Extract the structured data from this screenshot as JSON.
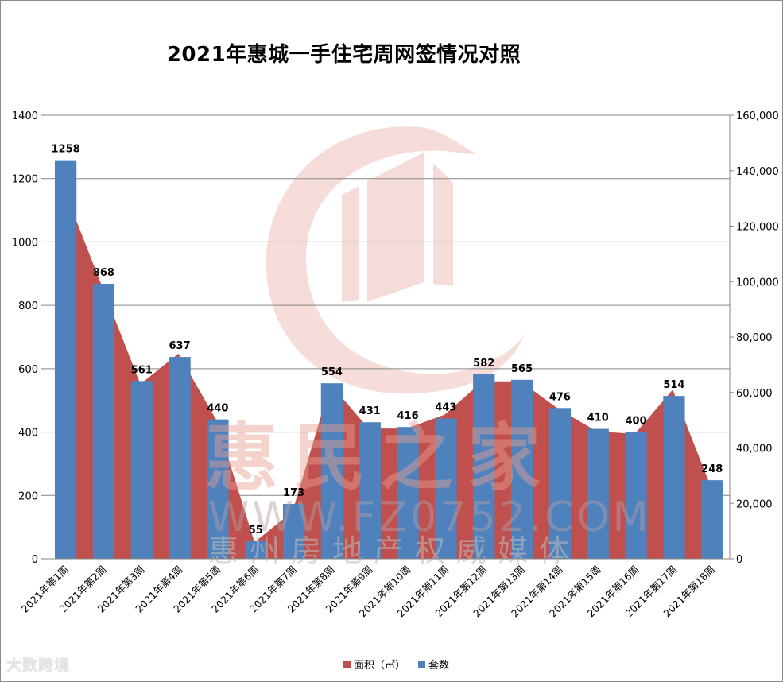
{
  "title": "2021年惠城一手住宅周网签情况对照",
  "legend": [
    {
      "label": "面积（㎡）",
      "color": "#c0504d"
    },
    {
      "label": "套数",
      "color": "#4f81bd"
    }
  ],
  "watermark": {
    "logo_text_1": "惠民之家",
    "logo_text_2": "WWW.FZ0752.COM",
    "logo_text_3": "惠州房地产权威媒体",
    "corner_brand": "大数跨境"
  },
  "chart_data": {
    "type": "bar",
    "title": "2021年惠城一手住宅周网签情况对照",
    "xlabel": "",
    "ylabel": "",
    "categories": [
      "2021年第1周",
      "2021年第2周",
      "2021年第3周",
      "2021年第4周",
      "2021年第5周",
      "2021年第6周",
      "2021年第7周",
      "2021年第8周",
      "2021年第9周",
      "2021年第10周",
      "2021年第11周",
      "2021年第12周",
      "2021年第13周",
      "2021年第14周",
      "2021年第15周",
      "2021年第16周",
      "2021年第17周",
      "2021年第18周"
    ],
    "series": [
      {
        "name": "面积（㎡）",
        "type": "area",
        "axis": "right",
        "color": "#c0504d",
        "values": [
          133000,
          98000,
          63000,
          74000,
          50000,
          6000,
          17000,
          63000,
          47000,
          47000,
          52000,
          64000,
          64000,
          54000,
          46000,
          45000,
          61000,
          26000
        ]
      },
      {
        "name": "套数",
        "type": "bar",
        "axis": "left",
        "color": "#4f81bd",
        "values": [
          1258,
          868,
          561,
          637,
          440,
          55,
          173,
          554,
          431,
          416,
          443,
          582,
          565,
          476,
          410,
          400,
          514,
          248
        ]
      }
    ],
    "left_axis": {
      "ylim": [
        0,
        1400
      ],
      "ticks": [
        "0",
        "200",
        "400",
        "600",
        "800",
        "1000",
        "1200",
        "1400"
      ]
    },
    "right_axis": {
      "ylim": [
        0,
        160000
      ],
      "ticks": [
        "0",
        "20,000",
        "40,000",
        "60,000",
        "80,000",
        "100,000",
        "120,000",
        "140,000",
        "160,000"
      ]
    },
    "grid": true,
    "legend_position": "bottom"
  }
}
